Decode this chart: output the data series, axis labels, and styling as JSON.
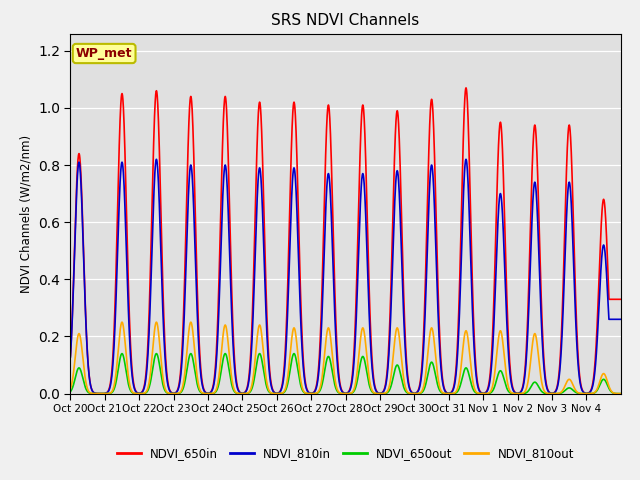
{
  "title": "SRS NDVI Channels",
  "ylabel": "NDVI Channels (W/m2/nm)",
  "annotation": "WP_met",
  "ylim": [
    0.0,
    1.26
  ],
  "x_tick_labels": [
    "Oct 20",
    "Oct 21",
    "Oct 22",
    "Oct 23",
    "Oct 24",
    "Oct 25",
    "Oct 26",
    "Oct 27",
    "Oct 28",
    "Oct 29",
    "Oct 30",
    "Oct 31",
    "Nov 1",
    "Nov 2",
    "Nov 3",
    "Nov 4"
  ],
  "legend_labels": [
    "NDVI_650in",
    "NDVI_810in",
    "NDVI_650out",
    "NDVI_810out"
  ],
  "line_colors": [
    "#ff0000",
    "#0000cc",
    "#00cc00",
    "#ffaa00"
  ],
  "bg_color": "#e0e0e0",
  "title_fontsize": 11,
  "num_days": 16,
  "daily_peak_650in": [
    0.84,
    1.05,
    1.06,
    1.04,
    1.04,
    1.02,
    1.02,
    1.01,
    1.01,
    0.99,
    1.03,
    1.07,
    0.95,
    0.94,
    0.94,
    0.68
  ],
  "daily_peak_810in": [
    0.81,
    0.81,
    0.82,
    0.8,
    0.8,
    0.79,
    0.79,
    0.77,
    0.77,
    0.78,
    0.8,
    0.82,
    0.7,
    0.74,
    0.74,
    0.52
  ],
  "daily_peak_650out": [
    0.09,
    0.14,
    0.14,
    0.14,
    0.14,
    0.14,
    0.14,
    0.13,
    0.13,
    0.1,
    0.11,
    0.09,
    0.08,
    0.04,
    0.02,
    0.05
  ],
  "daily_peak_810out": [
    0.21,
    0.25,
    0.25,
    0.25,
    0.24,
    0.24,
    0.23,
    0.23,
    0.23,
    0.23,
    0.23,
    0.22,
    0.22,
    0.21,
    0.05,
    0.07
  ]
}
